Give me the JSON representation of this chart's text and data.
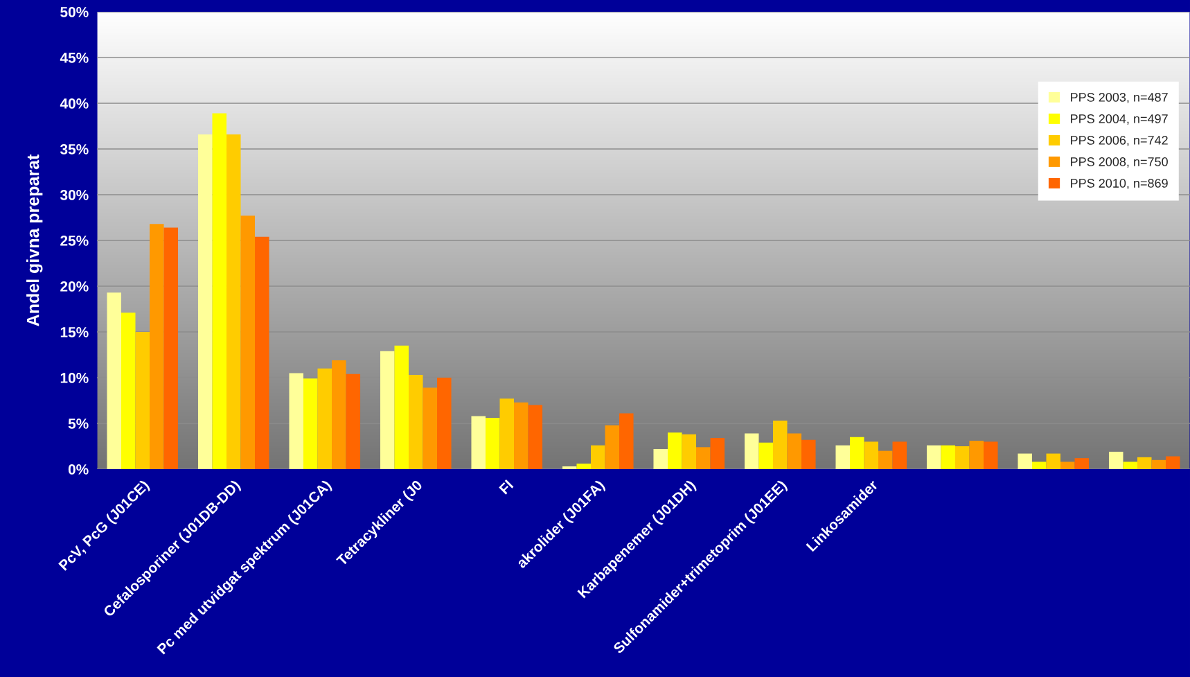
{
  "chart_data": {
    "type": "bar",
    "ylabel": "Andel givna preparat",
    "categories": [
      "PcV, PcG (J01CE)",
      "Cefalosporiner (J01DB-DD)",
      "Pc med utvidgat spektrum (J01CA)",
      "Tetracykliner (J0",
      "Fl",
      "akrolider (J01FA)",
      "Karbapenemer (J01DH)",
      "Sulfonamider+trimetoprim (J01EE)",
      "Linkosamider",
      null,
      null,
      null
    ],
    "series": [
      {
        "name": "PPS 2003, n=487",
        "color": "#ffff99",
        "values": [
          19.3,
          36.6,
          10.5,
          12.9,
          5.8,
          0.3,
          2.2,
          3.9,
          2.6,
          2.6,
          1.7,
          1.9
        ]
      },
      {
        "name": "PPS 2004, n=497",
        "color": "#ffff00",
        "values": [
          17.1,
          38.9,
          9.9,
          13.5,
          5.6,
          0.6,
          4.0,
          2.9,
          3.5,
          2.6,
          0.8,
          0.8
        ]
      },
      {
        "name": "PPS 2006, n=742",
        "color": "#ffcc00",
        "values": [
          15.0,
          36.6,
          11.0,
          10.3,
          7.7,
          2.6,
          3.8,
          5.3,
          3.0,
          2.5,
          1.7,
          1.3
        ]
      },
      {
        "name": "PPS 2008, n=750",
        "color": "#ff9900",
        "values": [
          26.8,
          27.7,
          11.9,
          8.9,
          7.3,
          4.8,
          2.4,
          3.9,
          2.0,
          3.1,
          0.8,
          1.0
        ]
      },
      {
        "name": "PPS 2010, n=869",
        "color": "#ff6600",
        "values": [
          26.4,
          25.4,
          10.4,
          10.0,
          7.0,
          6.1,
          3.4,
          3.2,
          3.0,
          3.0,
          1.2,
          1.4
        ]
      }
    ],
    "ylim": [
      0,
      50
    ],
    "yticks": [
      {
        "value": 0,
        "label": "0%"
      },
      {
        "value": 5,
        "label": "5%"
      },
      {
        "value": 10,
        "label": "10%"
      },
      {
        "value": 15,
        "label": "15%"
      },
      {
        "value": 20,
        "label": "20%"
      },
      {
        "value": 25,
        "label": "25%"
      },
      {
        "value": 30,
        "label": "30%"
      },
      {
        "value": 35,
        "label": "35%"
      },
      {
        "value": 40,
        "label": "40%"
      },
      {
        "value": 45,
        "label": "45%"
      },
      {
        "value": 50,
        "label": "50%"
      }
    ],
    "grid": "y",
    "legend": "top right"
  }
}
